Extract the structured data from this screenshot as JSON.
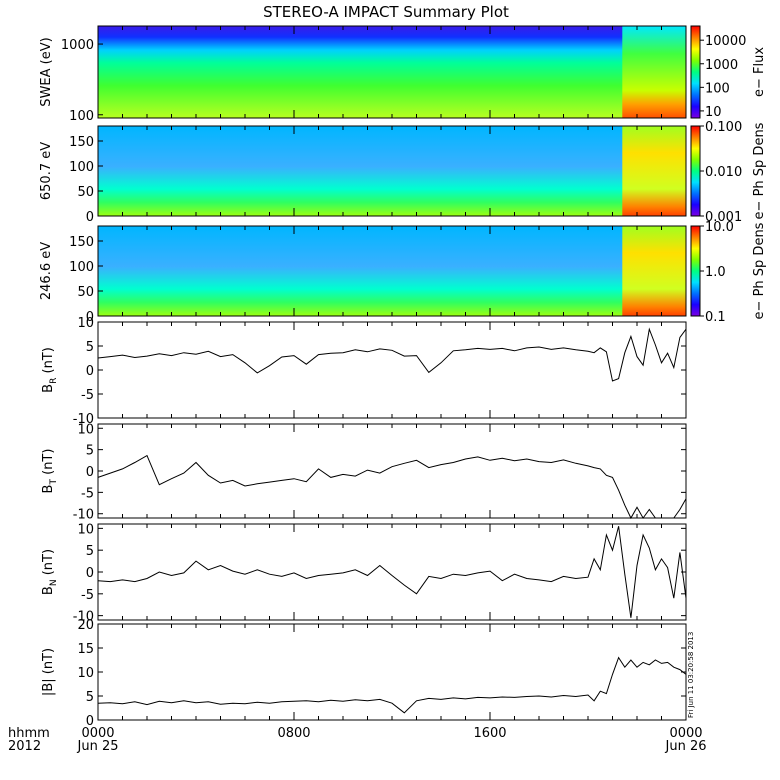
{
  "title": "STEREO-A IMPACT Summary Plot",
  "side_stamp": "Fri Jun 11 03:20:58 2013",
  "x_axis": {
    "row1_label": "hhmm",
    "row2_label": "2012",
    "ticks": [
      {
        "hhmm": "0000",
        "date": "Jun 25"
      },
      {
        "hhmm": "0800",
        "date": ""
      },
      {
        "hhmm": "1600",
        "date": ""
      },
      {
        "hhmm": "0000",
        "date": "Jun 26"
      }
    ]
  },
  "colors": {
    "spectrogram_scale": [
      "#7a00e0",
      "#1b00ff",
      "#0070ff",
      "#00e0ff",
      "#00ff80",
      "#7fff00",
      "#ffff00",
      "#ff8000",
      "#ff0000"
    ],
    "line": "#000000"
  },
  "chart_data": [
    {
      "type": "heatmap",
      "id": "swea",
      "ylabel": "SWEA (eV)",
      "yscale": "log",
      "ylim": [
        90,
        1800
      ],
      "yticks": [
        "1000",
        "100"
      ],
      "colorbar": {
        "label": "e− Flux",
        "scale": "log",
        "range": [
          5,
          40000
        ],
        "ticks": [
          "10000",
          "1000",
          "100",
          "10"
        ]
      }
    },
    {
      "type": "heatmap",
      "id": "pad650",
      "ylabel": "650.7 eV",
      "ylim": [
        0,
        180
      ],
      "yticks": [
        "150",
        "100",
        "50",
        "0"
      ],
      "colorbar": {
        "label": "e− Ph Sp Dens",
        "scale": "log",
        "range": [
          0.001,
          0.1
        ],
        "ticks": [
          "0.100",
          "0.010",
          "0.001"
        ]
      }
    },
    {
      "type": "heatmap",
      "id": "pad246",
      "ylabel": "246.6 eV",
      "ylim": [
        0,
        180
      ],
      "yticks": [
        "150",
        "100",
        "50",
        "0"
      ],
      "colorbar": {
        "label": "e− Ph Sp Dens",
        "scale": "log",
        "range": [
          0.1,
          10
        ],
        "ticks": [
          "10.0",
          "1.0",
          "0.1"
        ]
      }
    },
    {
      "type": "line",
      "id": "br",
      "ylabel": "B",
      "ylabel_sub": "R",
      "ylabel_unit": " (nT)",
      "ylim": [
        -10,
        10
      ],
      "yticks": [
        "10",
        "5",
        "0",
        "-5",
        "-10"
      ],
      "x": [
        0,
        0.5,
        1,
        1.5,
        2,
        2.5,
        3,
        3.5,
        4,
        4.5,
        5,
        5.5,
        6,
        6.5,
        7,
        7.5,
        8,
        8.5,
        9,
        9.5,
        10,
        10.5,
        11,
        11.5,
        12,
        12.5,
        13,
        13.5,
        14,
        14.5,
        15,
        15.5,
        16,
        16.5,
        17,
        17.5,
        18,
        18.5,
        19,
        19.5,
        20,
        20.25,
        20.5,
        20.75,
        21,
        21.25,
        21.5,
        21.75,
        22,
        22.25,
        22.5,
        22.75,
        23,
        23.25,
        23.5,
        23.75,
        24
      ],
      "values": [
        2.5,
        2.8,
        3.1,
        2.6,
        2.9,
        3.4,
        3.0,
        3.6,
        3.3,
        3.9,
        2.8,
        3.2,
        1.5,
        -0.6,
        0.9,
        2.7,
        3.0,
        1.2,
        3.2,
        3.5,
        3.6,
        4.2,
        3.8,
        4.4,
        4.1,
        2.9,
        3.0,
        -0.5,
        1.5,
        4.0,
        4.2,
        4.5,
        4.3,
        4.5,
        4.0,
        4.6,
        4.8,
        4.3,
        4.6,
        4.2,
        3.9,
        3.6,
        4.6,
        3.8,
        -2.3,
        -1.8,
        3.6,
        7.0,
        2.8,
        1.0,
        8.5,
        5.2,
        1.5,
        3.5,
        0.5,
        6.8,
        8.5
      ]
    },
    {
      "type": "line",
      "id": "bt",
      "ylabel": "B",
      "ylabel_sub": "T",
      "ylabel_unit": " (nT)",
      "ylim": [
        -11,
        11
      ],
      "yticks": [
        "10",
        "5",
        "0",
        "-5",
        "-10"
      ],
      "x": [
        0,
        0.5,
        1,
        1.5,
        2,
        2.5,
        3,
        3.5,
        4,
        4.5,
        5,
        5.5,
        6,
        6.5,
        7,
        7.5,
        8,
        8.5,
        9,
        9.5,
        10,
        10.5,
        11,
        11.5,
        12,
        12.5,
        13,
        13.5,
        14,
        14.5,
        15,
        15.5,
        16,
        16.5,
        17,
        17.5,
        18,
        18.5,
        19,
        19.5,
        20,
        20.25,
        20.5,
        20.75,
        21,
        21.25,
        21.5,
        21.75,
        22,
        22.25,
        22.5,
        22.75,
        23,
        23.25,
        23.5,
        23.75,
        24
      ],
      "values": [
        -1.5,
        -0.5,
        0.5,
        2.0,
        3.6,
        -3.2,
        -1.8,
        -0.5,
        2.0,
        -1.0,
        -2.8,
        -2.2,
        -3.5,
        -3.0,
        -2.6,
        -2.2,
        -1.8,
        -2.5,
        0.5,
        -1.5,
        -0.8,
        -1.2,
        0.2,
        -0.5,
        1.0,
        1.8,
        2.5,
        0.8,
        1.5,
        2.0,
        2.8,
        3.3,
        2.5,
        3.0,
        2.4,
        2.8,
        2.2,
        2.0,
        2.6,
        1.8,
        1.2,
        0.8,
        0.5,
        -1.0,
        -1.5,
        -4.5,
        -8.0,
        -11.0,
        -8.5,
        -11.0,
        -9.0,
        -11.0,
        -11.0,
        -11.0,
        -11.0,
        -9.0,
        -6.5
      ]
    },
    {
      "type": "line",
      "id": "bn",
      "ylabel": "B",
      "ylabel_sub": "N",
      "ylabel_unit": " (nT)",
      "ylim": [
        -11,
        11
      ],
      "yticks": [
        "10",
        "5",
        "0",
        "-5",
        "-10"
      ],
      "x": [
        0,
        0.5,
        1,
        1.5,
        2,
        2.5,
        3,
        3.5,
        4,
        4.5,
        5,
        5.5,
        6,
        6.5,
        7,
        7.5,
        8,
        8.5,
        9,
        9.5,
        10,
        10.5,
        11,
        11.5,
        12,
        12.5,
        13,
        13.5,
        14,
        14.5,
        15,
        15.5,
        16,
        16.5,
        17,
        17.5,
        18,
        18.5,
        19,
        19.5,
        20,
        20.25,
        20.5,
        20.75,
        21,
        21.25,
        21.5,
        21.75,
        22,
        22.25,
        22.5,
        22.75,
        23,
        23.25,
        23.5,
        23.75,
        24
      ],
      "values": [
        -2.0,
        -2.2,
        -1.8,
        -2.2,
        -1.5,
        0.0,
        -0.8,
        -0.2,
        2.5,
        0.5,
        1.5,
        0.2,
        -0.5,
        0.5,
        -0.5,
        -1.0,
        -0.2,
        -1.5,
        -0.8,
        -0.5,
        -0.2,
        0.5,
        -0.8,
        1.5,
        -0.8,
        -3.0,
        -5.0,
        -1.0,
        -1.5,
        -0.5,
        -0.8,
        -0.2,
        0.2,
        -2.0,
        -0.5,
        -1.5,
        -1.8,
        -2.2,
        -1.0,
        -1.5,
        -1.2,
        3.0,
        0.5,
        8.5,
        5.0,
        10.5,
        -0.5,
        -10.5,
        1.5,
        8.5,
        5.5,
        0.5,
        3.0,
        1.0,
        -6.0,
        4.5,
        -6.0
      ]
    },
    {
      "type": "line",
      "id": "bmag",
      "ylabel": "|B| (nT)",
      "ylim": [
        0,
        20
      ],
      "yticks": [
        "20",
        "15",
        "10",
        "5",
        "0"
      ],
      "x": [
        0,
        0.5,
        1,
        1.5,
        2,
        2.5,
        3,
        3.5,
        4,
        4.5,
        5,
        5.5,
        6,
        6.5,
        7,
        7.5,
        8,
        8.5,
        9,
        9.5,
        10,
        10.5,
        11,
        11.5,
        12,
        12.5,
        13,
        13.5,
        14,
        14.5,
        15,
        15.5,
        16,
        16.5,
        17,
        17.5,
        18,
        18.5,
        19,
        19.5,
        20,
        20.25,
        20.5,
        20.75,
        21,
        21.25,
        21.5,
        21.75,
        22,
        22.25,
        22.5,
        22.75,
        23,
        23.25,
        23.5,
        23.75,
        24
      ],
      "values": [
        3.5,
        3.6,
        3.4,
        3.8,
        3.2,
        3.9,
        3.6,
        4.0,
        3.6,
        3.8,
        3.3,
        3.5,
        3.4,
        3.7,
        3.5,
        3.8,
        3.9,
        4.0,
        3.8,
        4.1,
        3.9,
        4.2,
        4.0,
        4.3,
        3.5,
        1.5,
        4.0,
        4.5,
        4.3,
        4.6,
        4.4,
        4.7,
        4.6,
        4.8,
        4.7,
        4.9,
        5.0,
        4.8,
        5.1,
        4.9,
        5.2,
        4.0,
        6.0,
        5.5,
        9.5,
        13.0,
        11.0,
        12.5,
        11.0,
        12.0,
        11.5,
        12.5,
        11.8,
        12.0,
        11.0,
        10.5,
        9.5
      ]
    }
  ]
}
